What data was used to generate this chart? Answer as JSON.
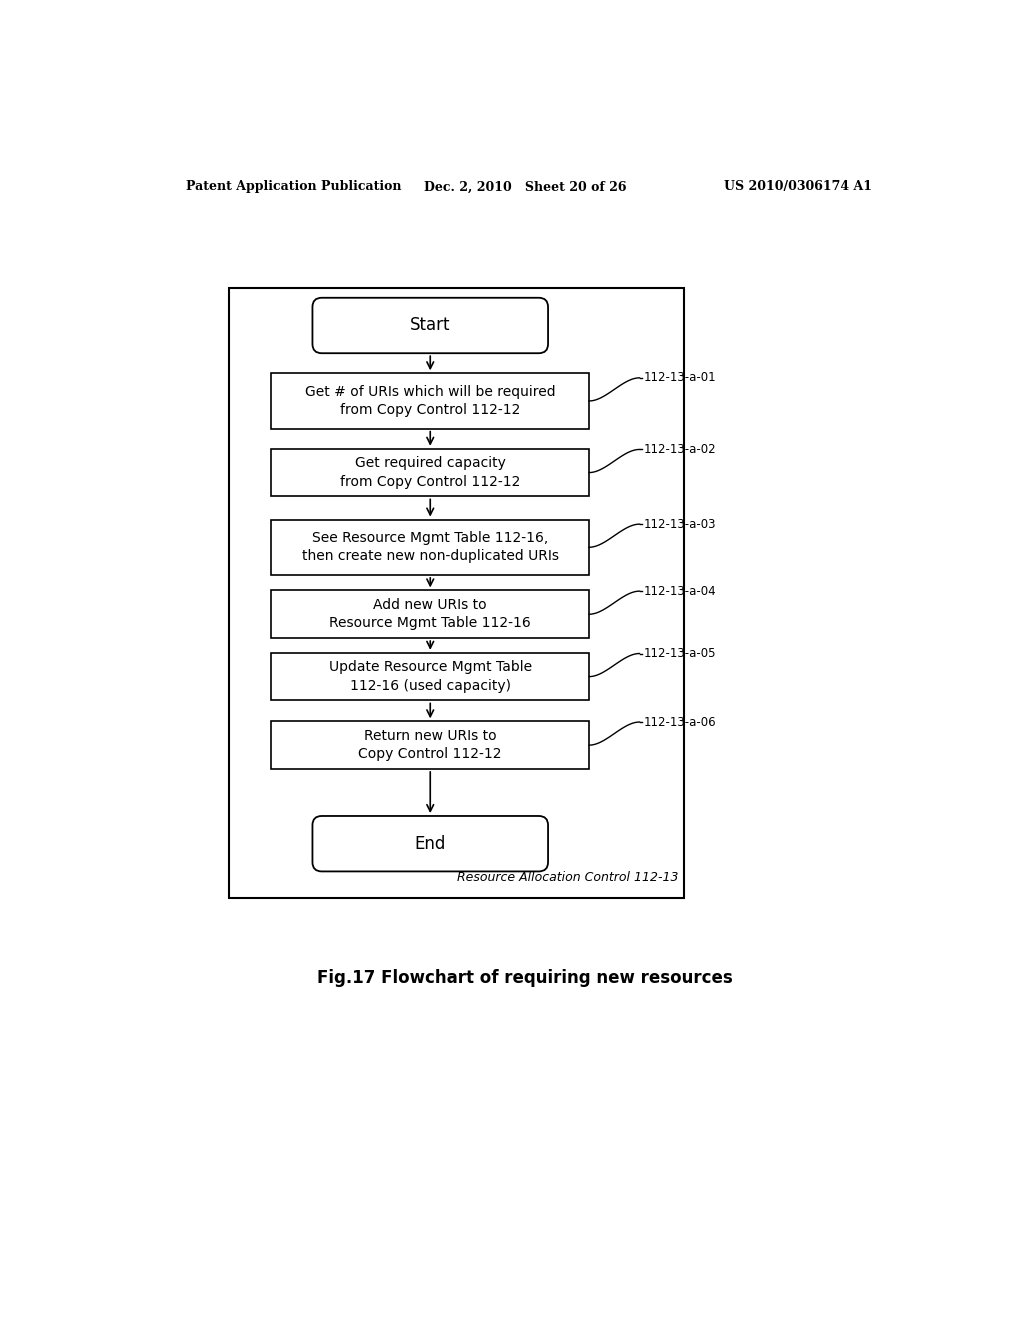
{
  "header_left": "Patent Application Publication",
  "header_mid": "Dec. 2, 2010   Sheet 20 of 26",
  "header_right": "US 2010/0306174 A1",
  "title": "Fig.17 Flowchart of requiring new resources",
  "outer_box_label": "Resource Allocation Control 112-13",
  "start_label": "Start",
  "end_label": "End",
  "steps": [
    {
      "label": "Get # of URIs which will be required\nfrom Copy Control 112-12",
      "ref": "112-13-a-01"
    },
    {
      "label": "Get required capacity\nfrom Copy Control 112-12",
      "ref": "112-13-a-02"
    },
    {
      "label": "See Resource Mgmt Table 112-16,\nthen create new non-duplicated URIs",
      "ref": "112-13-a-03"
    },
    {
      "label": "Add new URIs to\nResource Mgmt Table 112-16",
      "ref": "112-13-a-04"
    },
    {
      "label": "Update Resource Mgmt Table\n112-16 (used capacity)",
      "ref": "112-13-a-05"
    },
    {
      "label": "Return new URIs to\nCopy Control 112-12",
      "ref": "112-13-a-06"
    }
  ],
  "bg_color": "#ffffff",
  "box_color": "#ffffff",
  "box_edge_color": "#000000",
  "text_color": "#000000",
  "line_color": "#000000"
}
